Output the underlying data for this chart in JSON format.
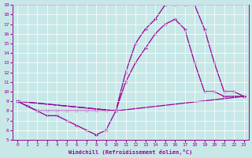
{
  "background_color": "#c8e8e8",
  "grid_color": "#ffffff",
  "line_color": "#990099",
  "xlabel": "Windchill (Refroidissement éolien,°C)",
  "xlim": [
    -0.5,
    23.5
  ],
  "ylim": [
    5,
    19
  ],
  "xticks": [
    0,
    1,
    2,
    3,
    4,
    5,
    6,
    7,
    8,
    9,
    10,
    11,
    12,
    13,
    14,
    15,
    16,
    17,
    18,
    19,
    20,
    21,
    22,
    23
  ],
  "yticks": [
    5,
    6,
    7,
    8,
    9,
    10,
    11,
    12,
    13,
    14,
    15,
    16,
    17,
    18,
    19
  ],
  "line1": {
    "x": [
      0,
      1,
      2,
      3,
      4,
      5,
      6,
      7,
      8,
      9,
      10
    ],
    "y": [
      9,
      8.5,
      8,
      7.5,
      7.5,
      7,
      6.5,
      6,
      5.5,
      6,
      8
    ]
  },
  "line2": {
    "x": [
      0,
      1,
      2,
      3,
      4,
      5,
      6,
      7,
      8,
      9,
      10,
      23
    ],
    "y": [
      9,
      8.5,
      8,
      8,
      8,
      8,
      8,
      8,
      8,
      8,
      8,
      9.5
    ]
  },
  "line3": {
    "x": [
      0,
      10,
      11,
      12,
      13,
      14,
      15,
      16,
      17,
      18,
      19,
      20,
      21,
      22,
      23
    ],
    "y": [
      9,
      8,
      11,
      13,
      14.5,
      16,
      17,
      17.5,
      16.5,
      13,
      10,
      10,
      9.5,
      9.5,
      9.5
    ]
  },
  "line4": {
    "x": [
      0,
      10,
      11,
      12,
      13,
      14,
      15,
      16,
      17,
      18,
      19,
      20,
      21,
      22,
      23
    ],
    "y": [
      9,
      8,
      12,
      15,
      16.5,
      17.5,
      19,
      19,
      19,
      19,
      16.5,
      13,
      10,
      10,
      9.5
    ]
  }
}
